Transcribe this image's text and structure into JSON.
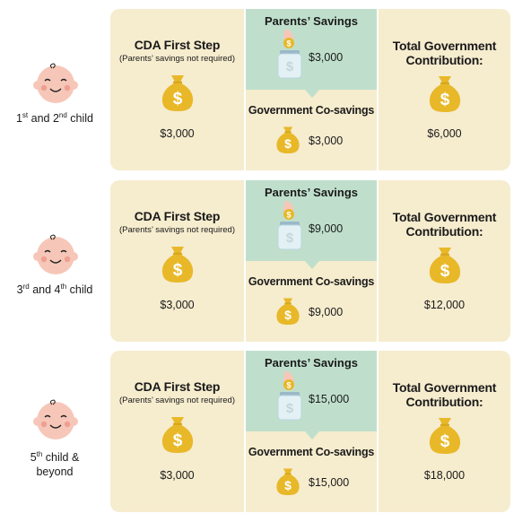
{
  "rows": [
    {
      "child_label": {
        "num1": "1",
        "sup1": "st",
        "mid": " and ",
        "num2": "2",
        "sup2": "nd",
        "tail": " child"
      },
      "first_step": {
        "title": "CDA First Step",
        "note": "(Parents’ savings not required)",
        "amount": "$3,000"
      },
      "parents_savings": {
        "title": "Parents’ Savings",
        "amount": "$3,000"
      },
      "co_savings": {
        "title": "Government Co-savings",
        "amount": "$3,000"
      },
      "total": {
        "title": "Total Government Contribution:",
        "amount": "$6,000"
      }
    },
    {
      "child_label": {
        "num1": "3",
        "sup1": "rd",
        "mid": " and ",
        "num2": "4",
        "sup2": "th",
        "tail": " child"
      },
      "first_step": {
        "title": "CDA First Step",
        "note": "(Parents’ savings not required)",
        "amount": "$3,000"
      },
      "parents_savings": {
        "title": "Parents’ Savings",
        "amount": "$9,000"
      },
      "co_savings": {
        "title": "Government Co-savings",
        "amount": "$9,000"
      },
      "total": {
        "title": "Total Government Contribution:",
        "amount": "$12,000"
      }
    },
    {
      "child_label": {
        "num1": "5",
        "sup1": "th",
        "line1_rest": " child &",
        "line2": "beyond"
      },
      "first_step": {
        "title": "CDA First Step",
        "note": "(Parents’ savings not required)",
        "amount": "$3,000"
      },
      "parents_savings": {
        "title": "Parents’ Savings",
        "amount": "$15,000"
      },
      "co_savings": {
        "title": "Government Co-savings",
        "amount": "$15,000"
      },
      "total": {
        "title": "Total Government Contribution:",
        "amount": "$18,000"
      }
    }
  ],
  "icons": {
    "baby": "baby-face-icon",
    "money_bag": "money-bag-icon",
    "savings_jar": "savings-jar-icon"
  },
  "colors": {
    "card": "#f6ecce",
    "parents_panel": "#bfdfcc",
    "bag": "#e8b828",
    "dollar": "#ffffff"
  }
}
